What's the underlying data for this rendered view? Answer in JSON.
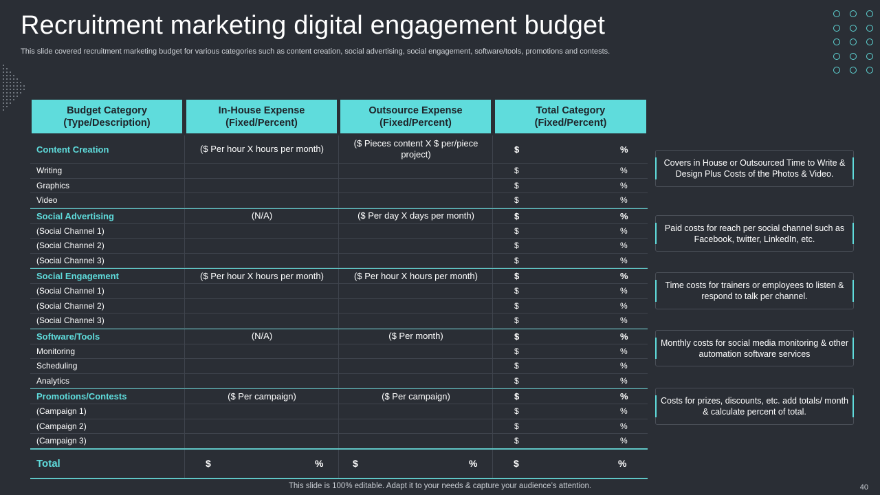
{
  "title": "Recruitment marketing digital engagement budget",
  "subtitle": "This slide covered recruitment marketing budget for various categories such as content creation, social advertising, social engagement, software/tools, promotions and contests.",
  "headers": [
    "Budget Category\n(Type/Description)",
    "In-House Expense\n(Fixed/Percent)",
    "Outsource Expense\n(Fixed/Percent)",
    "Total Category\n(Fixed/Percent)"
  ],
  "sections": [
    {
      "name": "Content Creation",
      "inhouse": "($ Per hour X hours per month)",
      "outsource": "($ Pieces content X $ per/piece project)",
      "dollar": "$",
      "percent": "%",
      "items": [
        {
          "label": "Writing",
          "dollar": "$",
          "percent": "%"
        },
        {
          "label": "Graphics",
          "dollar": "$",
          "percent": "%"
        },
        {
          "label": "Video",
          "dollar": "$",
          "percent": "%"
        }
      ]
    },
    {
      "name": "Social Advertising",
      "inhouse": "(N/A)",
      "outsource": "($ Per day X days per month)",
      "dollar": "$",
      "percent": "%",
      "items": [
        {
          "label": "(Social Channel 1)",
          "dollar": "$",
          "percent": "%"
        },
        {
          "label": "(Social Channel 2)",
          "dollar": "$",
          "percent": "%"
        },
        {
          "label": "(Social Channel 3)",
          "dollar": "$",
          "percent": "%"
        }
      ]
    },
    {
      "name": "Social Engagement",
      "inhouse": "($ Per hour X hours per month)",
      "outsource": "($ Per hour X hours per month)",
      "dollar": "$",
      "percent": "%",
      "items": [
        {
          "label": "(Social Channel 1)",
          "dollar": "$",
          "percent": "%"
        },
        {
          "label": "(Social Channel 2)",
          "dollar": "$",
          "percent": "%"
        },
        {
          "label": "(Social Channel 3)",
          "dollar": "$",
          "percent": "%"
        }
      ]
    },
    {
      "name": "Software/Tools",
      "inhouse": "(N/A)",
      "outsource": "($ Per month)",
      "dollar": "$",
      "percent": "%",
      "items": [
        {
          "label": "Monitoring",
          "dollar": "$",
          "percent": "%"
        },
        {
          "label": "Scheduling",
          "dollar": "$",
          "percent": "%"
        },
        {
          "label": "Analytics",
          "dollar": "$",
          "percent": "%"
        }
      ]
    },
    {
      "name": "Promotions/Contests",
      "inhouse": "($ Per campaign)",
      "outsource": "($ Per campaign)",
      "dollar": "$",
      "percent": "%",
      "items": [
        {
          "label": "(Campaign 1)",
          "dollar": "$",
          "percent": "%"
        },
        {
          "label": "(Campaign 2)",
          "dollar": "$",
          "percent": "%"
        },
        {
          "label": "(Campaign 3)",
          "dollar": "$",
          "percent": "%"
        }
      ]
    }
  ],
  "total": {
    "label": "Total",
    "inhouse_dollar": "$",
    "inhouse_percent": "%",
    "outsource_dollar": "$",
    "outsource_percent": "%",
    "total_dollar": "$",
    "total_percent": "%"
  },
  "notes": [
    "Covers  in House or Outsourced Time to Write & Design Plus Costs of the Photos & Video.",
    "Paid costs for reach per social channel such as Facebook, twitter, LinkedIn, etc.",
    "Time costs for trainers or employees to listen & respond to talk per channel.",
    "Monthly costs for social media monitoring & other automation software services",
    "Costs for prizes, discounts, etc. add totals/ month & calculate percent of total."
  ],
  "footer": "This slide is 100% editable. Adapt it to your needs & capture your audience’s attention.",
  "page_number": "40",
  "colors": {
    "accent": "#5fdcdc",
    "background": "#2a2e35"
  }
}
